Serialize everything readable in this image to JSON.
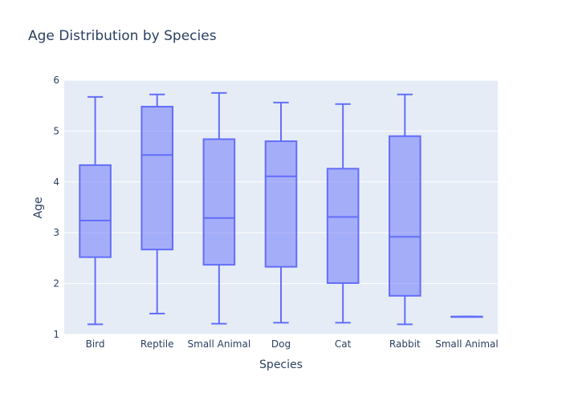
{
  "chart_data": {
    "type": "box",
    "title": "Age Distribution by Species",
    "xlabel": "Species",
    "ylabel": "Age",
    "ylim": [
      1,
      6
    ],
    "yticks": [
      1,
      2,
      3,
      4,
      5,
      6
    ],
    "grid": true,
    "legend": "none",
    "colors": {
      "plot_bg": "#e5ecf6",
      "paper_bg": "#ffffff",
      "grid": "#ffffff",
      "box_line": "#636efa",
      "box_fill": "rgba(99,110,250,0.5)",
      "text": "#2a3f5f"
    },
    "categories": [
      "Bird",
      "Reptile",
      "Small Animal",
      "Dog",
      "Cat",
      "Rabbit",
      "Small Animal "
    ],
    "category_labels": [
      "Bird",
      "Reptile",
      "Small Animal",
      "Dog",
      "Cat",
      "Rabbit",
      "Small Animal"
    ],
    "boxes": [
      {
        "min": 1.2,
        "q1": 2.52,
        "median": 3.24,
        "q3": 4.33,
        "max": 5.67
      },
      {
        "min": 1.41,
        "q1": 2.67,
        "median": 4.53,
        "q3": 5.48,
        "max": 5.72
      },
      {
        "min": 1.21,
        "q1": 2.37,
        "median": 3.29,
        "q3": 4.84,
        "max": 5.75
      },
      {
        "min": 1.23,
        "q1": 2.33,
        "median": 4.11,
        "q3": 4.8,
        "max": 5.56
      },
      {
        "min": 1.23,
        "q1": 2.01,
        "median": 3.31,
        "q3": 4.26,
        "max": 5.53
      },
      {
        "min": 1.2,
        "q1": 1.76,
        "median": 2.92,
        "q3": 4.9,
        "max": 5.72
      },
      {
        "min": 1.35,
        "q1": 1.35,
        "median": 1.35,
        "q3": 1.35,
        "max": 1.35
      }
    ]
  }
}
